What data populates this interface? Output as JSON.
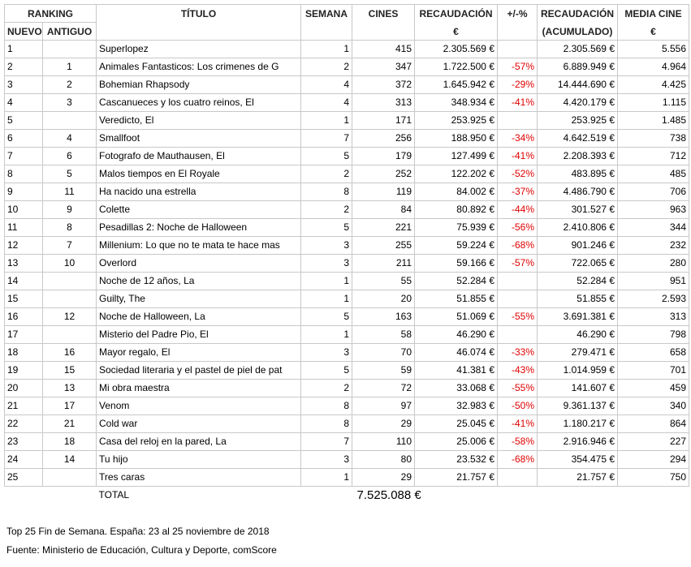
{
  "table": {
    "header": {
      "ranking": "RANKING",
      "nuevo": "NUEVO",
      "antiguo": "ANTIGUO",
      "titulo": "TÍTULO",
      "semana": "SEMANA",
      "cines": "CINES",
      "recaudacion": [
        "RECAUDACIÓN",
        "€"
      ],
      "variacion": "+/-%",
      "acumulado": [
        "RECAUDACIÓN",
        "(ACUMULADO)"
      ],
      "media": [
        "MEDIA CINE",
        "€"
      ]
    },
    "rows": [
      [
        "1",
        null,
        "Superlopez",
        "1",
        "415",
        "2.305.569 €",
        null,
        "2.305.569 €",
        "5.556"
      ],
      [
        "2",
        "1",
        "Animales Fantasticos: Los crimenes de G",
        "2",
        "347",
        "1.722.500 €",
        "-57%",
        "6.889.949 €",
        "4.964"
      ],
      [
        "3",
        "2",
        "Bohemian Rhapsody",
        "4",
        "372",
        "1.645.942 €",
        "-29%",
        "14.444.690 €",
        "4.425"
      ],
      [
        "4",
        "3",
        "Cascanueces y los cuatro reinos, El",
        "4",
        "313",
        "348.934 €",
        "-41%",
        "4.420.179 €",
        "1.115"
      ],
      [
        "5",
        null,
        "Veredicto, El",
        "1",
        "171",
        "253.925 €",
        null,
        "253.925 €",
        "1.485"
      ],
      [
        "6",
        "4",
        "Smallfoot",
        "7",
        "256",
        "188.950 €",
        "-34%",
        "4.642.519 €",
        "738"
      ],
      [
        "7",
        "6",
        "Fotografo de Mauthausen, El",
        "5",
        "179",
        "127.499 €",
        "-41%",
        "2.208.393 €",
        "712"
      ],
      [
        "8",
        "5",
        "Malos tiempos en El Royale",
        "2",
        "252",
        "122.202 €",
        "-52%",
        "483.895 €",
        "485"
      ],
      [
        "9",
        "11",
        "Ha nacido una estrella",
        "8",
        "119",
        "84.002 €",
        "-37%",
        "4.486.790 €",
        "706"
      ],
      [
        "10",
        "9",
        "Colette",
        "2",
        "84",
        "80.892 €",
        "-44%",
        "301.527 €",
        "963"
      ],
      [
        "11",
        "8",
        "Pesadillas 2: Noche de Halloween",
        "5",
        "221",
        "75.939 €",
        "-56%",
        "2.410.806 €",
        "344"
      ],
      [
        "12",
        "7",
        "Millenium: Lo que no te mata te hace mas",
        "3",
        "255",
        "59.224 €",
        "-68%",
        "901.246 €",
        "232"
      ],
      [
        "13",
        "10",
        "Overlord",
        "3",
        "211",
        "59.166 €",
        "-57%",
        "722.065 €",
        "280"
      ],
      [
        "14",
        null,
        "Noche de 12 años, La",
        "1",
        "55",
        "52.284 €",
        null,
        "52.284 €",
        "951"
      ],
      [
        "15",
        null,
        "Guilty, The",
        "1",
        "20",
        "51.855 €",
        null,
        "51.855 €",
        "2.593"
      ],
      [
        "16",
        "12",
        "Noche de Halloween, La",
        "5",
        "163",
        "51.069 €",
        "-55%",
        "3.691.381 €",
        "313"
      ],
      [
        "17",
        null,
        "Misterio del Padre Pio, El",
        "1",
        "58",
        "46.290 €",
        null,
        "46.290 €",
        "798"
      ],
      [
        "18",
        "16",
        "Mayor regalo, El",
        "3",
        "70",
        "46.074 €",
        "-33%",
        "279.471 €",
        "658"
      ],
      [
        "19",
        "15",
        "Sociedad literaria y el pastel de piel de pat",
        "5",
        "59",
        "41.381 €",
        "-43%",
        "1.014.959 €",
        "701"
      ],
      [
        "20",
        "13",
        "Mi obra maestra",
        "2",
        "72",
        "33.068 €",
        "-55%",
        "141.607 €",
        "459"
      ],
      [
        "21",
        "17",
        "Venom",
        "8",
        "97",
        "32.983 €",
        "-50%",
        "9.361.137 €",
        "340"
      ],
      [
        "22",
        "21",
        "Cold war",
        "8",
        "29",
        "25.045 €",
        "-41%",
        "1.180.217 €",
        "864"
      ],
      [
        "23",
        "18",
        "Casa del reloj en la pared, La",
        "7",
        "110",
        "25.006 €",
        "-58%",
        "2.916.946 €",
        "227"
      ],
      [
        "24",
        "14",
        "Tu hijo",
        "3",
        "80",
        "23.532 €",
        "-68%",
        "354.475 €",
        "294"
      ],
      [
        "25",
        null,
        "Tres caras",
        "1",
        "29",
        "21.757 €",
        null,
        "21.757 €",
        "750"
      ]
    ],
    "total": {
      "label": "TOTAL",
      "value": "7.525.088 €"
    }
  },
  "notes": [
    "Top 25 Fin de Semana. España: 23 al 25 noviembre de 2018",
    "Fuente: Ministerio de Educación, Cultura y Deporte, comScore"
  ]
}
